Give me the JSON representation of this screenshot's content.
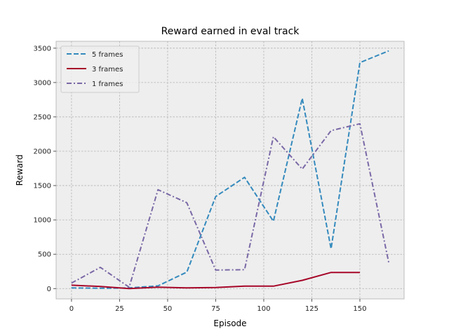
{
  "chart_data": {
    "type": "line",
    "title": "Reward earned in eval track",
    "xlabel": "Episode",
    "ylabel": "Reward",
    "xlim": [
      -8,
      173
    ],
    "ylim": [
      -150,
      3600
    ],
    "xticks": [
      0,
      25,
      50,
      75,
      100,
      125,
      150
    ],
    "yticks": [
      0,
      500,
      1000,
      1500,
      2000,
      2500,
      3000,
      3500
    ],
    "grid": true,
    "legend": "top-left",
    "series": [
      {
        "name": "5 frames",
        "color": "#348ABD",
        "dash": "dashed",
        "x": [
          0,
          15,
          30,
          45,
          60,
          75,
          90,
          105,
          120,
          135,
          150,
          165
        ],
        "y": [
          10,
          5,
          10,
          40,
          240,
          1340,
          1620,
          980,
          2770,
          580,
          3290,
          3460
        ]
      },
      {
        "name": "3 frames",
        "color": "#A60628",
        "dash": "solid",
        "x": [
          0,
          15,
          30,
          45,
          60,
          75,
          90,
          105,
          120,
          135,
          150
        ],
        "y": [
          50,
          30,
          0,
          20,
          10,
          15,
          35,
          35,
          120,
          235,
          235
        ]
      },
      {
        "name": "1 frames",
        "color": "#7A68A6",
        "dash": "dashdot",
        "x": [
          0,
          15,
          30,
          45,
          60,
          75,
          90,
          105,
          120,
          135,
          150,
          165
        ],
        "y": [
          80,
          310,
          20,
          1440,
          1250,
          270,
          275,
          2210,
          1740,
          2300,
          2400,
          380
        ]
      }
    ]
  }
}
